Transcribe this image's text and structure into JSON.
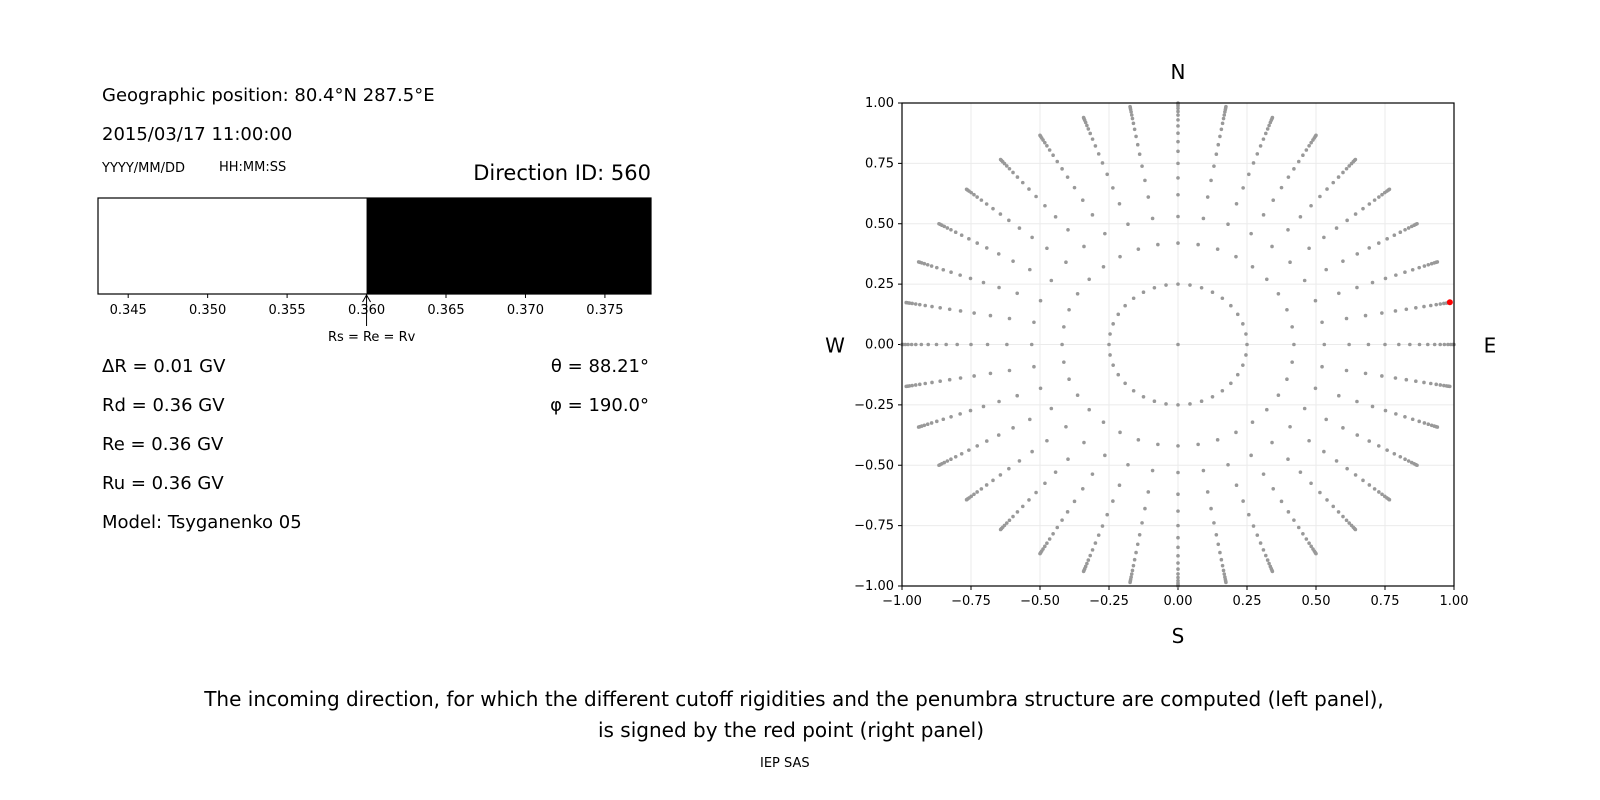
{
  "left_panel": {
    "geo_position": "Geographic position: 80.4°N 287.5°E",
    "datetime": "2015/03/17 11:00:00",
    "date_format": "YYYY/MM/DD",
    "time_format": "HH:MM:SS",
    "direction_id": "Direction ID: 560",
    "delta_r": "ΔR = 0.01 GV",
    "rd": "Rd = 0.36 GV",
    "re": "Re = 0.36 GV",
    "ru": "Ru = 0.36 GV",
    "model": "Model: Tsyganenko 05",
    "theta": "θ = 88.21°",
    "phi": "φ = 190.0°",
    "annotation": "Rs = Re = Rv"
  },
  "caption": {
    "line1": "The incoming direction, for which the different cutoff rigidities and the penumbra structure are computed (left panel),",
    "line2": "is signed by the red point (right panel)",
    "credit": "IEP SAS"
  },
  "chart_data": [
    {
      "type": "bar",
      "description_kind": "penumbra strip",
      "xlim": [
        0.3431,
        0.3779
      ],
      "xticks": [
        "0.345",
        "0.350",
        "0.355",
        "0.360",
        "0.365",
        "0.370",
        "0.375"
      ],
      "segments": [
        {
          "from": 0.3431,
          "to": 0.36,
          "color": "#ffffff"
        },
        {
          "from": 0.36,
          "to": 0.3779,
          "color": "#000000"
        }
      ],
      "marker_value": 0.36
    },
    {
      "type": "scatter",
      "xlim": [
        -1,
        1
      ],
      "ylim": [
        -1,
        1
      ],
      "xticks": [
        "−1.00",
        "−0.75",
        "−0.50",
        "−0.25",
        "0.00",
        "0.25",
        "0.50",
        "0.75",
        "1.00"
      ],
      "yticks": [
        "−1.00",
        "−0.75",
        "−0.50",
        "−0.25",
        "0.00",
        "0.25",
        "0.50",
        "0.75",
        "1.00"
      ],
      "grid": true,
      "compass": {
        "n": "N",
        "s": "S",
        "e": "E",
        "w": "W"
      },
      "point_color": "#999999",
      "highlight_color": "#ff0000",
      "ray_azimuth_step_deg": 10,
      "ray_radii": [
        0.42,
        0.53,
        0.62,
        0.69,
        0.75,
        0.8,
        0.84,
        0.875,
        0.905,
        0.93,
        0.95,
        0.965,
        0.978,
        0.988,
        0.995,
        1.0
      ],
      "inner_ring": {
        "radius": 0.25,
        "count": 36
      },
      "center_point": [
        0,
        0
      ],
      "highlight_point": [
        0.985,
        0.175
      ]
    }
  ]
}
